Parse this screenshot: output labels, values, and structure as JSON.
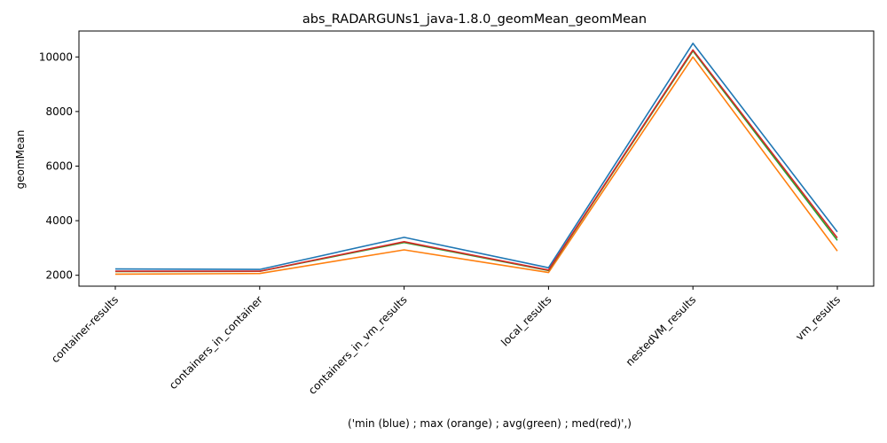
{
  "chart_data": {
    "type": "line",
    "title": "abs_RADARGUNs1_java-1.8.0_geomMean_geomMean",
    "xlabel": "('min (blue) ; max (orange) ; avg(green) ; med(red)',)",
    "ylabel": "geomMean",
    "categories": [
      "container-results",
      "containers_in_container",
      "containers_in_vm_results",
      "local_results",
      "nestedVM_results",
      "vm_results"
    ],
    "ylim": [
      1600,
      10950
    ],
    "yticks": [
      2000,
      4000,
      6000,
      8000,
      10000
    ],
    "ytick_labels": [
      "2000",
      "4000",
      "6000",
      "8000",
      "10000"
    ],
    "grid": false,
    "series": [
      {
        "color": "#1f77b4",
        "values": [
          2230,
          2215,
          3390,
          2275,
          10500,
          3590
        ]
      },
      {
        "color": "#ff7f0e",
        "values": [
          2040,
          2065,
          2930,
          2100,
          10000,
          2890
        ]
      },
      {
        "color": "#2ca02c",
        "values": [
          2135,
          2145,
          3200,
          2175,
          10220,
          3280
        ]
      },
      {
        "color": "#d62728",
        "values": [
          2150,
          2150,
          3230,
          2190,
          10260,
          3370
        ]
      }
    ]
  }
}
